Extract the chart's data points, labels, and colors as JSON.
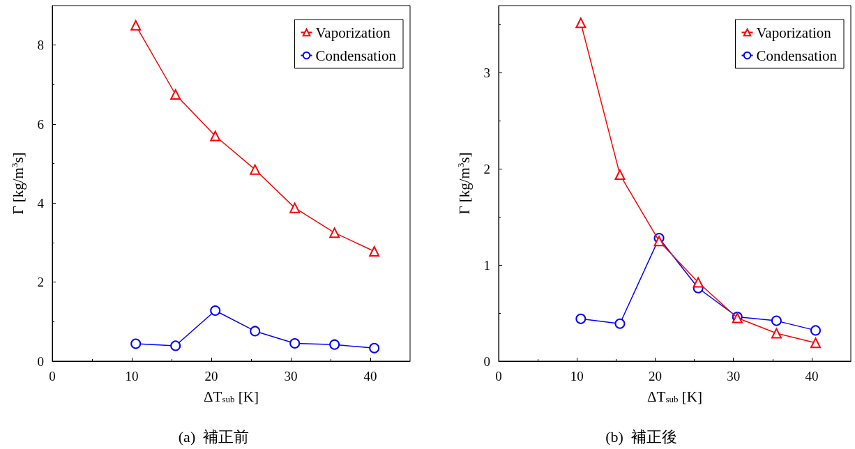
{
  "chart_data": [
    {
      "type": "line",
      "title": "(a)  補正前",
      "xlabel": "ΔT$_{sub}$ [K]",
      "ylabel": "Γ [kg/m$^{3}$s]",
      "x": [
        10.5,
        15.5,
        20.5,
        25.5,
        30.5,
        35.5,
        40.5
      ],
      "xlim": [
        0,
        45
      ],
      "xticks": [
        0,
        10,
        20,
        30,
        40
      ],
      "ylim": [
        0,
        9
      ],
      "yticks": [
        0,
        2,
        4,
        6,
        8
      ],
      "grid": false,
      "legend": "top right",
      "series": [
        {
          "name": "Vaporization",
          "color": "#ff0000",
          "marker": "triangle",
          "values": [
            8.5,
            6.75,
            5.7,
            4.85,
            3.88,
            3.25,
            2.78
          ]
        },
        {
          "name": "Condensation",
          "color": "#0000ff",
          "marker": "circle",
          "values": [
            0.44,
            0.39,
            1.28,
            0.76,
            0.45,
            0.42,
            0.33
          ]
        }
      ]
    },
    {
      "type": "line",
      "title": "(b)  補正後",
      "xlabel": "ΔT$_{sub}$ [K]",
      "ylabel": "Γ [kg/m$^{3}$s]",
      "x": [
        10.5,
        15.5,
        20.5,
        25.5,
        30.5,
        35.5,
        40.5
      ],
      "xlim": [
        0,
        45
      ],
      "xticks": [
        0,
        10,
        20,
        30,
        40
      ],
      "ylim": [
        0,
        3.7
      ],
      "yticks": [
        0,
        1,
        2,
        3
      ],
      "grid": false,
      "legend": "top right",
      "series": [
        {
          "name": "Vaporization",
          "color": "#ff0000",
          "marker": "triangle",
          "values": [
            3.52,
            1.94,
            1.25,
            0.82,
            0.45,
            0.29,
            0.19
          ]
        },
        {
          "name": "Condensation",
          "color": "#0000ff",
          "marker": "circle",
          "values": [
            0.44,
            0.39,
            1.28,
            0.76,
            0.46,
            0.42,
            0.32
          ]
        }
      ]
    }
  ]
}
